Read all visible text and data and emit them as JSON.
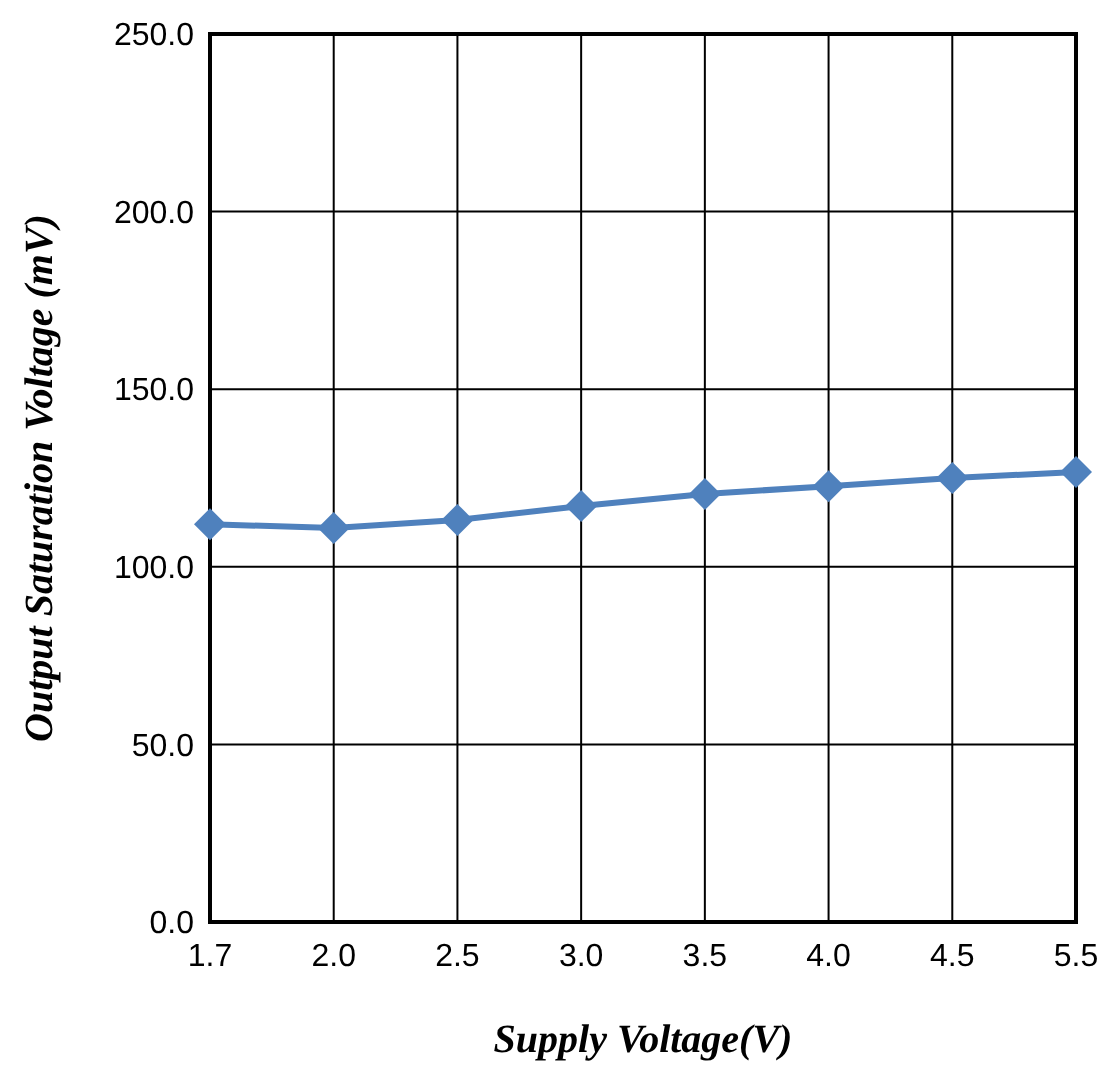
{
  "chart_data": {
    "type": "line",
    "xlabel": "Supply Voltage(V)",
    "ylabel": "Output Saturation Voltage (mV)",
    "categories": [
      "1.7",
      "2.0",
      "2.5",
      "3.0",
      "3.5",
      "4.0",
      "4.5",
      "5.5"
    ],
    "series": [
      {
        "color": "#4f81bd",
        "values": [
          112.0,
          110.9,
          113.2,
          117.1,
          120.5,
          122.7,
          125.0,
          126.7
        ]
      }
    ],
    "ylim": [
      0,
      250
    ],
    "yticks": [
      {
        "value": 0,
        "label": "0.0"
      },
      {
        "value": 50,
        "label": "50.0"
      },
      {
        "value": 100,
        "label": "100.0"
      },
      {
        "value": 150,
        "label": "150.0"
      },
      {
        "value": 200,
        "label": "200.0"
      },
      {
        "value": 250,
        "label": "250.0"
      }
    ],
    "grid": true,
    "marker": "diamond",
    "line_style": "solid"
  }
}
